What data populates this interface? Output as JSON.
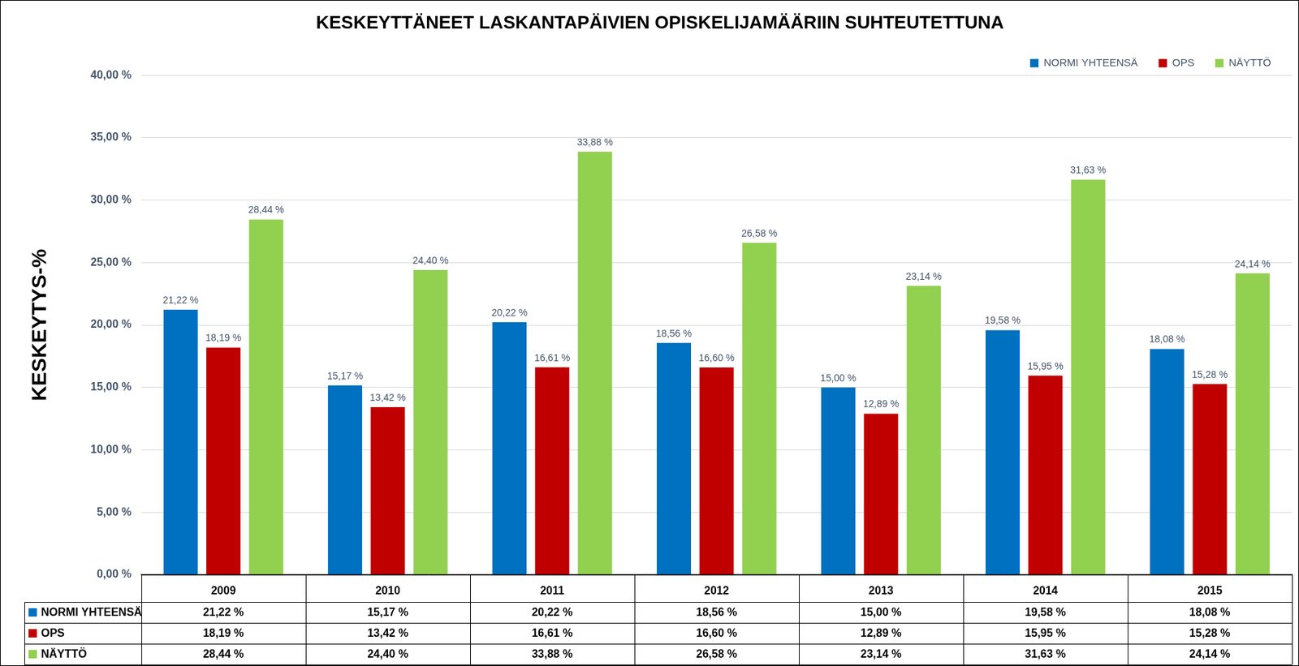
{
  "chart_data": {
    "type": "bar",
    "title": "KESKEYTTÄNEET LASKANTAPÄIVIEN OPISKELIJAMÄÄRIIN SUHTEUTETTUNA",
    "y_label": "KESKEYTYS-%",
    "categories": [
      "2009",
      "2010",
      "2011",
      "2012",
      "2013",
      "2014",
      "2015"
    ],
    "series": [
      {
        "name": "NORMI YHTEENSÄ",
        "color": "#0070C0",
        "values": [
          21.22,
          15.17,
          20.22,
          18.56,
          15.0,
          19.58,
          18.08
        ],
        "value_labels": [
          "21,22 %",
          "15,17 %",
          "20,22 %",
          "18,56 %",
          "15,00 %",
          "19,58 %",
          "18,08 %"
        ]
      },
      {
        "name": "OPS",
        "color": "#C00000",
        "values": [
          18.19,
          13.42,
          16.61,
          16.6,
          12.89,
          15.95,
          15.28
        ],
        "value_labels": [
          "18,19 %",
          "13,42 %",
          "16,61 %",
          "16,60 %",
          "12,89 %",
          "15,95 %",
          "15,28 %"
        ]
      },
      {
        "name": "NÄYTTÖ",
        "color": "#92D050",
        "values": [
          28.44,
          24.4,
          33.88,
          26.58,
          23.14,
          31.63,
          24.14
        ],
        "value_labels": [
          "28,44 %",
          "24,40 %",
          "33,88 %",
          "26,58 %",
          "23,14 %",
          "31,63 %",
          "24,14 %"
        ]
      }
    ],
    "ylim": [
      0,
      40
    ],
    "yticks": [
      {
        "value": 0,
        "label": "0,00 %"
      },
      {
        "value": 5,
        "label": "5,00 %"
      },
      {
        "value": 10,
        "label": "10,00 %"
      },
      {
        "value": 15,
        "label": "15,00 %"
      },
      {
        "value": 20,
        "label": "20,00 %"
      },
      {
        "value": 25,
        "label": "25,00 %"
      },
      {
        "value": 30,
        "label": "30,00 %"
      },
      {
        "value": 35,
        "label": "35,00 %"
      },
      {
        "value": 40,
        "label": "40,00 %"
      }
    ],
    "grid": true,
    "legend": "upper right",
    "data_labels": true
  }
}
